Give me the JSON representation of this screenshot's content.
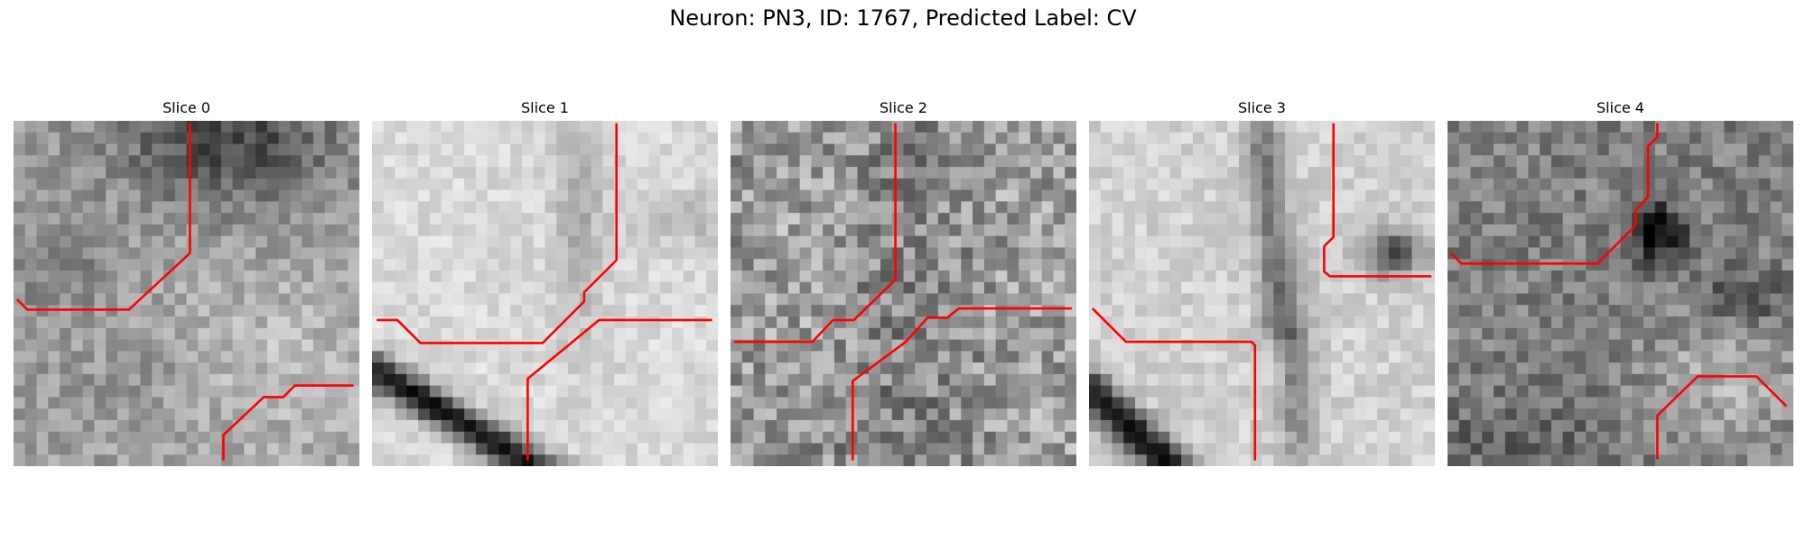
{
  "figure_title": "Neuron: PN3, ID: 1767, Predicted Label: CV",
  "panels": [
    {
      "title": "Slice 0",
      "trace_color": "#ff0000",
      "pattern": "dark-top-right"
    },
    {
      "title": "Slice 1",
      "trace_color": "#ff0000",
      "pattern": "light-with-dark-diagonal"
    },
    {
      "title": "Slice 2",
      "trace_color": "#ff0000",
      "pattern": "noisy-medium"
    },
    {
      "title": "Slice 3",
      "trace_color": "#ff0000",
      "pattern": "light-cells-with-dark-membrane"
    },
    {
      "title": "Slice 4",
      "trace_color": "#ff0000",
      "pattern": "dark-blob-upper"
    }
  ]
}
